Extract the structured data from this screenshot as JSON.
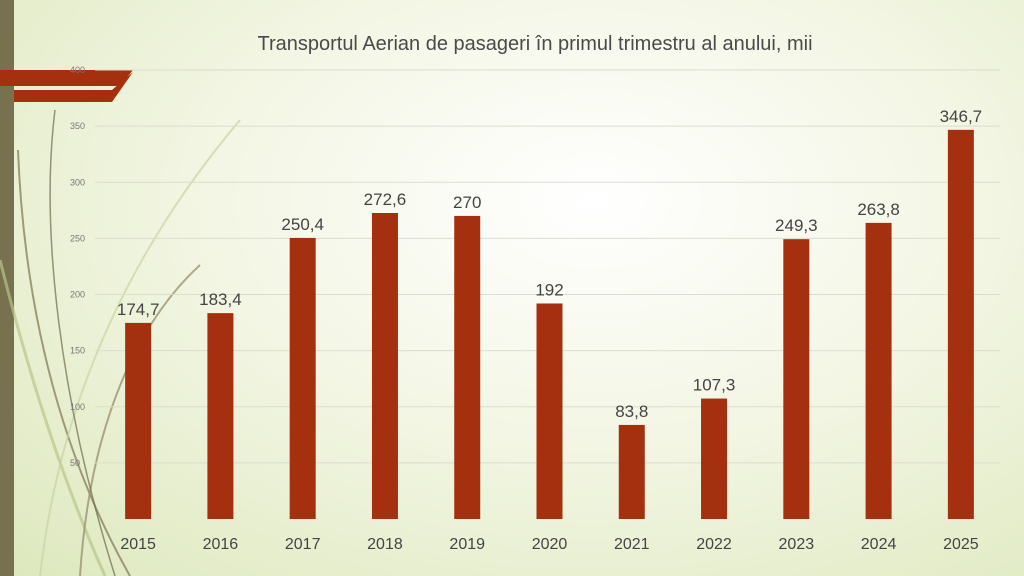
{
  "chart_data": {
    "type": "bar",
    "title": "Transportul Aerian de pasageri în primul trimestru al anului, mii",
    "xlabel": "",
    "ylabel": "",
    "categories": [
      "2015",
      "2016",
      "2017",
      "2018",
      "2019",
      "2020",
      "2021",
      "2022",
      "2023",
      "2024",
      "2025"
    ],
    "values": [
      174.7,
      183.4,
      250.4,
      272.6,
      270,
      192,
      83.8,
      107.3,
      249.3,
      263.8,
      346.7
    ],
    "data_labels": [
      "174,7",
      "183,4",
      "250,4",
      "272,6",
      "270",
      "192",
      "83,8",
      "107,3",
      "249,3",
      "263,8",
      "346,7"
    ],
    "y_ticks": [
      50,
      100,
      150,
      200,
      250,
      300,
      350,
      400
    ],
    "ylim": [
      0,
      400
    ],
    "grid": true,
    "legend": "none",
    "bar_color": "#a5300f"
  }
}
